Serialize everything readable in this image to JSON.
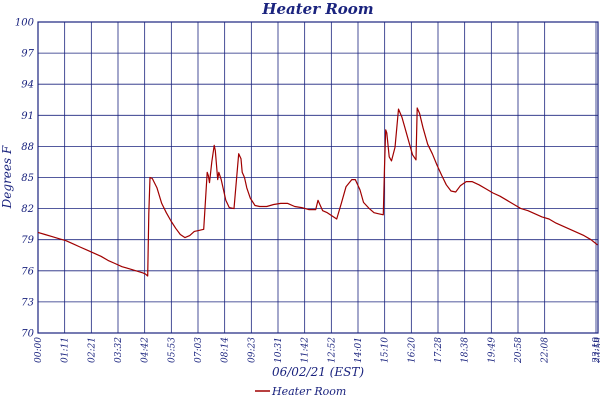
{
  "chart_data": {
    "type": "line",
    "title": "Heater Room",
    "xlabel": "06/02/21 (EST)",
    "ylabel": "Degrees F",
    "y_ticks": [
      "70",
      "73",
      "76",
      "79",
      "82",
      "85",
      "88",
      "91",
      "94",
      "97",
      "100"
    ],
    "ylim": [
      70,
      100
    ],
    "x_ticks": [
      "00:00",
      "01:11",
      "02:21",
      "03:32",
      "04:42",
      "05:53",
      "07:03",
      "08:14",
      "09:23",
      "10:31",
      "11:42",
      "12:52",
      "14:01",
      "15:10",
      "16:20",
      "17:28",
      "18:38",
      "19:49",
      "20:58",
      "22:08",
      "23:19",
      "23:59"
    ],
    "grid": true,
    "legend_position": "bottom-center",
    "colors": {
      "series": "#a00000",
      "grid": "#1a237e",
      "text": "#1a237e"
    },
    "series": [
      {
        "name": "Heater Room",
        "x": [
          0,
          0.3,
          0.6,
          0.9,
          1.2,
          1.5,
          1.8,
          2.1,
          2.4,
          2.7,
          3.0,
          3.3,
          3.6,
          3.9,
          4.2,
          4.5,
          4.6,
          4.65,
          4.7,
          4.75,
          4.8,
          4.9,
          5.1,
          5.3,
          5.5,
          5.7,
          5.9,
          6.1,
          6.3,
          6.5,
          6.7,
          6.9,
          7.1,
          7.25,
          7.3,
          7.35,
          7.45,
          7.55,
          7.6,
          7.7,
          7.75,
          7.85,
          7.95,
          8.05,
          8.2,
          8.4,
          8.6,
          8.7,
          8.75,
          8.85,
          8.95,
          9.1,
          9.3,
          9.5,
          9.8,
          10.1,
          10.4,
          10.7,
          11.0,
          11.3,
          11.6,
          11.9,
          12.0,
          12.1,
          12.2,
          12.4,
          12.6,
          12.8,
          13.0,
          13.2,
          13.45,
          13.6,
          13.8,
          13.95,
          14.2,
          14.4,
          14.6,
          14.8,
          14.85,
          14.9,
          14.95,
          15.05,
          15.15,
          15.3,
          15.45,
          15.6,
          15.75,
          15.9,
          16.05,
          16.2,
          16.25,
          16.35,
          16.5,
          16.7,
          16.9,
          17.1,
          17.3,
          17.5,
          17.7,
          17.9,
          18.1,
          18.35,
          18.6,
          18.9,
          19.2,
          19.5,
          19.8,
          20.1,
          20.4,
          20.7,
          21.0,
          21.3,
          21.6,
          21.9,
          22.2,
          22.5,
          22.8,
          23.1,
          23.4,
          23.7,
          23.98
        ],
        "y": [
          79.7,
          79.5,
          79.3,
          79.1,
          78.9,
          78.6,
          78.3,
          78.0,
          77.7,
          77.4,
          77.0,
          76.7,
          76.4,
          76.2,
          76.0,
          75.8,
          75.7,
          75.6,
          75.5,
          81.5,
          85.0,
          84.9,
          84.0,
          82.5,
          81.6,
          80.8,
          80.1,
          79.5,
          79.2,
          79.4,
          79.8,
          79.9,
          80.0,
          85.5,
          85.2,
          84.5,
          86.5,
          88.1,
          87.6,
          84.8,
          85.5,
          84.8,
          83.8,
          82.8,
          82.1,
          82.0,
          87.3,
          86.8,
          85.5,
          85.0,
          84.0,
          83.0,
          82.3,
          82.2,
          82.2,
          82.4,
          82.5,
          82.5,
          82.2,
          82.1,
          81.9,
          81.9,
          82.8,
          82.3,
          81.8,
          81.6,
          81.3,
          81.0,
          82.5,
          84.1,
          84.8,
          84.8,
          83.8,
          82.6,
          82.0,
          81.6,
          81.5,
          81.4,
          86.0,
          89.6,
          89.3,
          87.0,
          86.6,
          87.9,
          91.6,
          90.8,
          89.6,
          88.4,
          87.2,
          86.7,
          91.7,
          91.2,
          89.8,
          88.2,
          87.3,
          86.2,
          85.2,
          84.3,
          83.7,
          83.6,
          84.2,
          84.6,
          84.6,
          84.3,
          83.9,
          83.5,
          83.2,
          82.8,
          82.4,
          82.0,
          81.8,
          81.5,
          81.2,
          81.0,
          80.6,
          80.3,
          80.0,
          79.7,
          79.4,
          79.0,
          78.5
        ]
      }
    ]
  }
}
